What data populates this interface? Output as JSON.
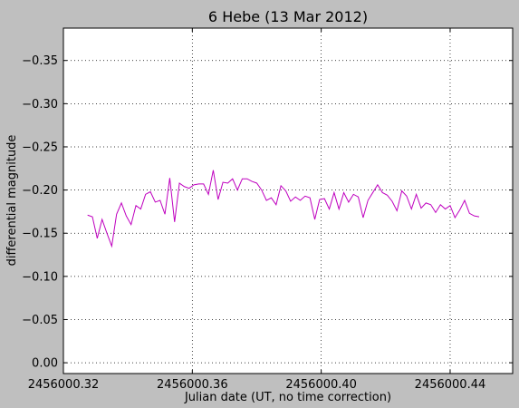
{
  "chart_data": {
    "type": "line",
    "title": "6 Hebe (13 Mar 2012)",
    "x_label": "Julian date (UT, no time correction)",
    "y_label": "differential magnitude",
    "grid": true,
    "xlim": [
      2456000.32,
      2456000.4594
    ],
    "xticks": [
      2456000.32,
      2456000.36,
      {
        "value": 2456000.4,
        "label": "2456000.40"
      },
      2456000.44
    ],
    "ylim": [
      0.0125,
      -0.3875
    ],
    "yticks": [
      {
        "value": 0,
        "label": "0.00"
      },
      {
        "value": -0.05,
        "label": "−0.05"
      },
      {
        "value": -0.1,
        "label": "−0.10"
      },
      {
        "value": -0.15,
        "label": "−0.15"
      },
      {
        "value": -0.2,
        "label": "−0.20"
      },
      {
        "value": -0.25,
        "label": "−0.25"
      },
      {
        "value": -0.3,
        "label": "−0.30"
      },
      {
        "value": -0.35,
        "label": "−0.35"
      }
    ],
    "x": [
      2456000.3275,
      2456000.329,
      2456000.3305,
      2456000.332,
      2456000.3335,
      2456000.335,
      2456000.3365,
      2456000.338,
      2456000.3395,
      2456000.341,
      2456000.3425,
      2456000.344,
      2456000.3455,
      2456000.347,
      2456000.3485,
      2456000.35,
      2456000.3515,
      2456000.353,
      2456000.3545,
      2456000.356,
      2456000.3575,
      2456000.359,
      2456000.3605,
      2456000.362,
      2456000.3635,
      2456000.365,
      2456000.3665,
      2456000.368,
      2456000.3695,
      2456000.371,
      2456000.3725,
      2456000.374,
      2456000.3755,
      2456000.377,
      2456000.3785,
      2456000.38,
      2456000.3815,
      2456000.383,
      2456000.3845,
      2456000.386,
      2456000.3875,
      2456000.389,
      2456000.3905,
      2456000.392,
      2456000.3935,
      2456000.395,
      2456000.3965,
      2456000.398,
      2456000.3995,
      2456000.401,
      2456000.4025,
      2456000.404,
      2456000.4055,
      2456000.407,
      2456000.4085,
      2456000.41,
      2456000.4115,
      2456000.413,
      2456000.4145,
      2456000.416,
      2456000.4175,
      2456000.419,
      2456000.4205,
      2456000.422,
      2456000.4235,
      2456000.425,
      2456000.4265,
      2456000.428,
      2456000.4295,
      2456000.431,
      2456000.4325,
      2456000.434,
      2456000.4355,
      2456000.437,
      2456000.4385,
      2456000.44,
      2456000.4415,
      2456000.443,
      2456000.4445,
      2456000.446,
      2456000.4475,
      2456000.449
    ],
    "series": [
      {
        "color": "#bf00bf",
        "values": [
          -0.171,
          -0.169,
          -0.144,
          -0.166,
          -0.15,
          -0.135,
          -0.172,
          -0.185,
          -0.17,
          -0.16,
          -0.182,
          -0.178,
          -0.195,
          -0.198,
          -0.186,
          -0.188,
          -0.172,
          -0.214,
          -0.163,
          -0.208,
          -0.204,
          -0.202,
          -0.206,
          -0.207,
          -0.207,
          -0.195,
          -0.223,
          -0.189,
          -0.209,
          -0.208,
          -0.213,
          -0.2,
          -0.213,
          -0.213,
          -0.21,
          -0.208,
          -0.2,
          -0.188,
          -0.191,
          -0.183,
          -0.205,
          -0.199,
          -0.187,
          -0.192,
          -0.188,
          -0.193,
          -0.191,
          -0.166,
          -0.189,
          -0.19,
          -0.178,
          -0.197,
          -0.178,
          -0.197,
          -0.186,
          -0.195,
          -0.192,
          -0.168,
          -0.188,
          -0.197,
          -0.206,
          -0.197,
          -0.194,
          -0.187,
          -0.176,
          -0.199,
          -0.193,
          -0.178,
          -0.195,
          -0.179,
          -0.185,
          -0.183,
          -0.174,
          -0.183,
          -0.178,
          -0.182,
          -0.168,
          -0.177,
          -0.188,
          -0.173,
          -0.17,
          -0.169
        ]
      }
    ]
  }
}
